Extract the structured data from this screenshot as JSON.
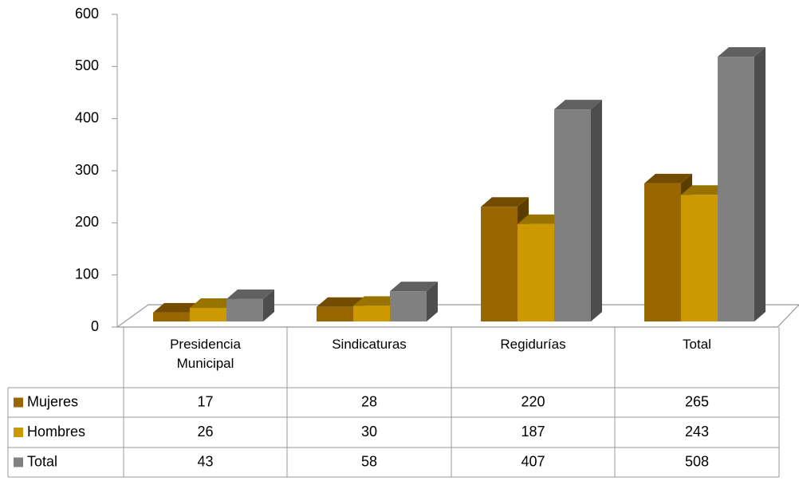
{
  "chart_data": {
    "type": "bar3d",
    "categories": [
      "Presidencia Municipal",
      "Sindicaturas",
      "Regidurías",
      "Total"
    ],
    "series": [
      {
        "name": "Mujeres",
        "color": "#996600",
        "values": [
          17,
          28,
          220,
          265
        ]
      },
      {
        "name": "Hombres",
        "color": "#cc9900",
        "values": [
          26,
          30,
          187,
          243
        ]
      },
      {
        "name": "Total",
        "color": "#808080",
        "values": [
          43,
          58,
          407,
          508
        ]
      }
    ],
    "ylim": [
      0,
      600
    ],
    "yticks": [
      0,
      100,
      200,
      300,
      400,
      500,
      600
    ],
    "grid": false,
    "legend": "table"
  }
}
